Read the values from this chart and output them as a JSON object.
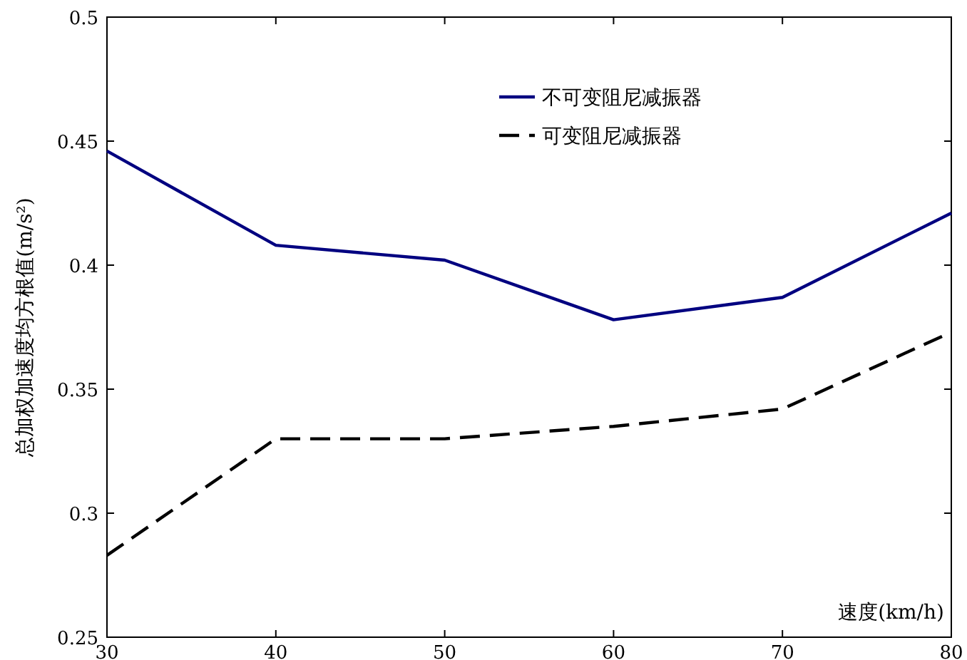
{
  "chart_data": {
    "type": "line",
    "xlabel": "速度(km/h)",
    "ylabel": "总加权加速度均方根值(m/s²)",
    "x": [
      30,
      40,
      50,
      60,
      70,
      80
    ],
    "series": [
      {
        "name": "不可变阻尼减振器",
        "color": "#000080",
        "line_style": "solid",
        "values": [
          0.446,
          0.408,
          0.402,
          0.378,
          0.387,
          0.421
        ]
      },
      {
        "name": "可变阻尼减振器",
        "color": "#000000",
        "line_style": "dashed",
        "values": [
          0.283,
          0.33,
          0.33,
          0.335,
          0.342,
          0.373
        ]
      }
    ],
    "xlim": [
      30,
      80
    ],
    "xticks": [
      30,
      40,
      50,
      60,
      70,
      80
    ],
    "ylim": [
      0.25,
      0.5
    ],
    "yticks": [
      {
        "value": 0.25,
        "label": "0.25"
      },
      {
        "value": 0.3,
        "label": "0.3"
      },
      {
        "value": 0.35,
        "label": "0.35"
      },
      {
        "value": 0.4,
        "label": "0.4"
      },
      {
        "value": 0.45,
        "label": "0.45"
      },
      {
        "value": 0.5,
        "label": "0.5"
      }
    ],
    "grid": false,
    "legend": "top right",
    "marker": "none"
  }
}
